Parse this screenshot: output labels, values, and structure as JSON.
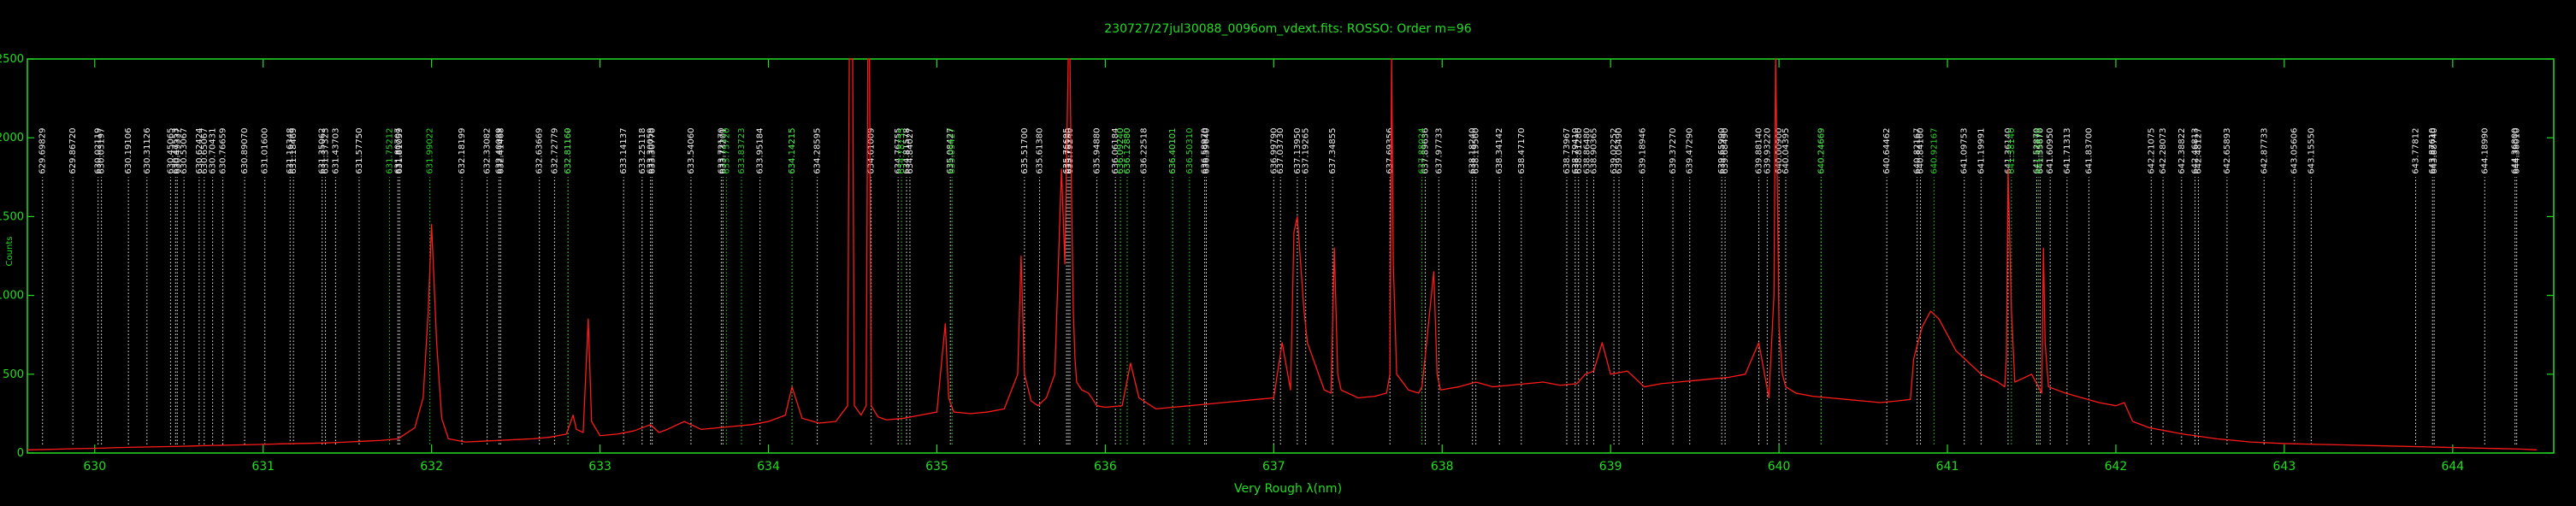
{
  "chart_data": {
    "type": "line",
    "title": "230727/27jul30088_0096om_vdext.fits: ROSSO: Order m=96",
    "xlabel": "Very Rough λ(nm)",
    "ylabel": "Counts",
    "xlim": [
      629.6,
      644.6
    ],
    "ylim": [
      0,
      2500
    ],
    "x_ticks": [
      "630",
      "631",
      "632",
      "633",
      "634",
      "635",
      "636",
      "637",
      "638",
      "639",
      "640",
      "641",
      "642",
      "643",
      "644"
    ],
    "y_ticks": [
      "0",
      "500",
      "1000",
      "1500",
      "2000",
      "2500"
    ],
    "grid": false,
    "colors": {
      "axes": "#22dd22",
      "spectrum": "#ff1a1a",
      "white_markers": "#f2f2f2",
      "green_markers": "#2bd22b"
    },
    "white_markers": [
      {
        "x": 629.69,
        "label": "629.69829"
      },
      {
        "x": 629.87,
        "label": "629.86720"
      },
      {
        "x": 630.02,
        "label": "630.02119"
      },
      {
        "x": 630.04,
        "label": "630.03197"
      },
      {
        "x": 630.2,
        "label": "630.19106"
      },
      {
        "x": 630.31,
        "label": "630.31126"
      },
      {
        "x": 630.45,
        "label": "630.45065"
      },
      {
        "x": 630.48,
        "label": "630.47553"
      },
      {
        "x": 630.49,
        "label": "630.49337"
      },
      {
        "x": 630.53,
        "label": "630.53067"
      },
      {
        "x": 630.62,
        "label": "630.62424"
      },
      {
        "x": 630.65,
        "label": "630.65067"
      },
      {
        "x": 630.7,
        "label": "630.70431"
      },
      {
        "x": 630.76,
        "label": "630.76659"
      },
      {
        "x": 630.89,
        "label": "630.89070"
      },
      {
        "x": 631.01,
        "label": "631.01600"
      },
      {
        "x": 631.16,
        "label": "631.16348"
      },
      {
        "x": 631.18,
        "label": "631.18469"
      },
      {
        "x": 631.35,
        "label": "631.35062"
      },
      {
        "x": 631.37,
        "label": "631.37323"
      },
      {
        "x": 631.43,
        "label": "631.43703"
      },
      {
        "x": 631.57,
        "label": "631.57750"
      },
      {
        "x": 631.8,
        "label": "631.80707"
      },
      {
        "x": 631.81,
        "label": "631.81059"
      },
      {
        "x": 632.18,
        "label": "632.18199"
      },
      {
        "x": 632.33,
        "label": "632.33082"
      },
      {
        "x": 632.4,
        "label": "632.40089"
      },
      {
        "x": 632.41,
        "label": "632.41468"
      },
      {
        "x": 632.64,
        "label": "632.63669"
      },
      {
        "x": 632.73,
        "label": "632.72779"
      },
      {
        "x": 632.81,
        "label": "632.81160"
      },
      {
        "x": 633.14,
        "label": "633.14137"
      },
      {
        "x": 633.25,
        "label": "633.25118"
      },
      {
        "x": 633.3,
        "label": "633.30059"
      },
      {
        "x": 633.31,
        "label": "633.30770"
      },
      {
        "x": 633.54,
        "label": "633.54060"
      },
      {
        "x": 633.72,
        "label": "633.72170"
      },
      {
        "x": 633.73,
        "label": "633.73201"
      },
      {
        "x": 633.95,
        "label": "633.95184"
      },
      {
        "x": 634.14,
        "label": "634.14215"
      },
      {
        "x": 634.29,
        "label": "634.28595"
      },
      {
        "x": 634.61,
        "label": "634.61009"
      },
      {
        "x": 634.77,
        "label": "634.76755"
      },
      {
        "x": 634.82,
        "label": "634.81578"
      },
      {
        "x": 634.84,
        "label": "634.84027"
      },
      {
        "x": 635.08,
        "label": "635.08427"
      },
      {
        "x": 635.52,
        "label": "635.51700"
      },
      {
        "x": 635.61,
        "label": "635.61380"
      },
      {
        "x": 635.77,
        "label": "635.76695"
      },
      {
        "x": 635.78,
        "label": "635.78160"
      },
      {
        "x": 635.79,
        "label": "635.79240"
      },
      {
        "x": 635.95,
        "label": "635.94880"
      },
      {
        "x": 636.06,
        "label": "636.06184"
      },
      {
        "x": 636.09,
        "label": "636.09240"
      },
      {
        "x": 636.13,
        "label": "636.12880"
      },
      {
        "x": 636.23,
        "label": "636.22518"
      },
      {
        "x": 636.4,
        "label": "636.40101"
      },
      {
        "x": 636.59,
        "label": "636.58970"
      },
      {
        "x": 636.6,
        "label": "636.59640"
      },
      {
        "x": 637.0,
        "label": "636.99790"
      },
      {
        "x": 637.04,
        "label": "637.03730"
      },
      {
        "x": 637.14,
        "label": "637.13950"
      },
      {
        "x": 637.19,
        "label": "637.19265"
      },
      {
        "x": 637.35,
        "label": "637.34855"
      },
      {
        "x": 637.69,
        "label": "637.69356"
      },
      {
        "x": 637.9,
        "label": "637.89636"
      },
      {
        "x": 637.98,
        "label": "637.97733"
      },
      {
        "x": 638.18,
        "label": "638.18240"
      },
      {
        "x": 638.2,
        "label": "638.19560"
      },
      {
        "x": 638.34,
        "label": "638.34142"
      },
      {
        "x": 638.47,
        "label": "638.47170"
      },
      {
        "x": 638.74,
        "label": "638.73967"
      },
      {
        "x": 638.79,
        "label": "638.79410"
      },
      {
        "x": 638.81,
        "label": "638.81280"
      },
      {
        "x": 638.86,
        "label": "638.86480"
      },
      {
        "x": 638.9,
        "label": "638.90365"
      },
      {
        "x": 639.02,
        "label": "639.02252"
      },
      {
        "x": 639.05,
        "label": "639.05490"
      },
      {
        "x": 639.19,
        "label": "639.18946"
      },
      {
        "x": 639.37,
        "label": "639.37270"
      },
      {
        "x": 639.47,
        "label": "639.47290"
      },
      {
        "x": 639.66,
        "label": "639.65990"
      },
      {
        "x": 639.68,
        "label": "639.68490"
      },
      {
        "x": 639.88,
        "label": "639.88140"
      },
      {
        "x": 639.93,
        "label": "639.93220"
      },
      {
        "x": 640.0,
        "label": "640.00900"
      },
      {
        "x": 640.04,
        "label": "640.04395"
      },
      {
        "x": 640.25,
        "label": "640.24669"
      },
      {
        "x": 640.64,
        "label": "640.64462"
      },
      {
        "x": 640.82,
        "label": "640.82167"
      },
      {
        "x": 640.84,
        "label": "640.84160"
      },
      {
        "x": 641.1,
        "label": "641.09753"
      },
      {
        "x": 641.2,
        "label": "641.19991"
      },
      {
        "x": 641.36,
        "label": "641.36140"
      },
      {
        "x": 641.53,
        "label": "641.52870"
      },
      {
        "x": 641.55,
        "label": "641.55670"
      },
      {
        "x": 641.61,
        "label": "641.60950"
      },
      {
        "x": 641.71,
        "label": "641.71313"
      },
      {
        "x": 641.84,
        "label": "641.83700"
      },
      {
        "x": 642.21,
        "label": "642.21075"
      },
      {
        "x": 642.28,
        "label": "642.28073"
      },
      {
        "x": 642.39,
        "label": "642.38822"
      },
      {
        "x": 642.47,
        "label": "642.46813"
      },
      {
        "x": 642.49,
        "label": "642.48127"
      },
      {
        "x": 642.66,
        "label": "642.65893"
      },
      {
        "x": 642.88,
        "label": "642.87733"
      },
      {
        "x": 643.06,
        "label": "643.05606"
      },
      {
        "x": 643.16,
        "label": "643.15550"
      },
      {
        "x": 643.78,
        "label": "643.77812"
      },
      {
        "x": 643.88,
        "label": "643.87610"
      },
      {
        "x": 643.89,
        "label": "643.88740"
      },
      {
        "x": 644.19,
        "label": "644.18990"
      },
      {
        "x": 644.37,
        "label": "644.36800"
      },
      {
        "x": 644.38,
        "label": "644.38010"
      }
    ],
    "green_markers": [
      {
        "x": 631.75,
        "label": "631.75212"
      },
      {
        "x": 631.99,
        "label": "631.99022"
      },
      {
        "x": 632.81,
        "label": "632.81169"
      },
      {
        "x": 633.75,
        "label": "633.75720"
      },
      {
        "x": 633.84,
        "label": "633.83723"
      },
      {
        "x": 634.14,
        "label": "634.14215"
      },
      {
        "x": 634.79,
        "label": "634.78755"
      },
      {
        "x": 635.09,
        "label": "635.09427"
      },
      {
        "x": 636.09,
        "label": "636.09240"
      },
      {
        "x": 636.13,
        "label": "636.12880"
      },
      {
        "x": 636.4,
        "label": "636.40101"
      },
      {
        "x": 636.5,
        "label": "636.50310"
      },
      {
        "x": 637.88,
        "label": "637.88024"
      },
      {
        "x": 640.25,
        "label": "640.24669"
      },
      {
        "x": 640.92,
        "label": "640.92167"
      },
      {
        "x": 641.38,
        "label": "641.38140"
      },
      {
        "x": 641.54,
        "label": "641.53870"
      }
    ],
    "series": [
      {
        "x": [
          629.6,
          629.7,
          629.8,
          629.9,
          630.0,
          630.1,
          630.2,
          630.3,
          630.4,
          630.5,
          630.6,
          630.7,
          630.8,
          630.9,
          631.0,
          631.1,
          631.2,
          631.3,
          631.4,
          631.5,
          631.6,
          631.7,
          631.8,
          631.9,
          631.95,
          631.98,
          632.0,
          632.03,
          632.06,
          632.1,
          632.2,
          632.3,
          632.4,
          632.5,
          632.6,
          632.7,
          632.8,
          632.84,
          632.86,
          632.9,
          632.93,
          632.95,
          633.0,
          633.1,
          633.2,
          633.3,
          633.35,
          633.4,
          633.5,
          633.6,
          633.7,
          633.8,
          633.9,
          634.0,
          634.1,
          634.14,
          634.2,
          634.3,
          634.4,
          634.47,
          634.48,
          634.49,
          634.5,
          634.51,
          634.55,
          634.58,
          634.59,
          634.6,
          634.61,
          634.65,
          634.7,
          634.8,
          634.9,
          635.0,
          635.03,
          635.05,
          635.07,
          635.1,
          635.2,
          635.3,
          635.4,
          635.48,
          635.5,
          635.52,
          635.56,
          635.6,
          635.65,
          635.7,
          635.74,
          635.76,
          635.78,
          635.79,
          635.8,
          635.81,
          635.82,
          635.83,
          635.86,
          635.9,
          635.92,
          635.95,
          636.0,
          636.1,
          636.15,
          636.2,
          636.3,
          636.4,
          636.5,
          636.6,
          636.7,
          636.8,
          636.9,
          637.0,
          637.05,
          637.1,
          637.12,
          637.14,
          637.16,
          637.18,
          637.2,
          637.3,
          637.34,
          637.36,
          637.38,
          637.4,
          637.5,
          637.6,
          637.67,
          637.69,
          637.7,
          637.71,
          637.73,
          637.8,
          637.86,
          637.88,
          637.9,
          637.95,
          637.97,
          637.99,
          638.1,
          638.2,
          638.3,
          638.4,
          638.5,
          638.6,
          638.7,
          638.8,
          638.85,
          638.9,
          638.95,
          639.0,
          639.1,
          639.2,
          639.3,
          639.4,
          639.5,
          639.6,
          639.7,
          639.8,
          639.88,
          639.94,
          639.97,
          639.98,
          639.99,
          640.0,
          640.02,
          640.04,
          640.1,
          640.2,
          640.3,
          640.4,
          640.5,
          640.6,
          640.7,
          640.78,
          640.8,
          640.85,
          640.9,
          640.95,
          641.0,
          641.05,
          641.1,
          641.2,
          641.3,
          641.34,
          641.35,
          641.36,
          641.38,
          641.4,
          641.5,
          641.55,
          641.56,
          641.57,
          641.58,
          641.6,
          641.7,
          641.8,
          641.9,
          642.0,
          642.05,
          642.1,
          642.2,
          642.4,
          642.6,
          642.8,
          643.0,
          643.2,
          643.4,
          643.6,
          643.8,
          644.0,
          644.2,
          644.4,
          644.5
        ],
        "y": [
          20,
          22,
          25,
          28,
          30,
          33,
          36,
          38,
          40,
          42,
          45,
          48,
          50,
          52,
          55,
          58,
          60,
          62,
          65,
          70,
          75,
          80,
          90,
          160,
          350,
          900,
          1450,
          700,
          220,
          90,
          70,
          75,
          80,
          85,
          90,
          100,
          120,
          240,
          150,
          130,
          850,
          200,
          110,
          120,
          140,
          180,
          130,
          150,
          200,
          150,
          160,
          170,
          180,
          200,
          240,
          420,
          220,
          190,
          200,
          300,
          2500,
          2500,
          2500,
          300,
          240,
          300,
          2500,
          2500,
          300,
          230,
          210,
          220,
          240,
          260,
          600,
          820,
          350,
          260,
          250,
          260,
          280,
          500,
          1250,
          500,
          330,
          300,
          350,
          500,
          1800,
          1200,
          2500,
          2500,
          1600,
          900,
          600,
          450,
          400,
          380,
          350,
          300,
          290,
          300,
          570,
          350,
          280,
          290,
          300,
          310,
          320,
          330,
          340,
          350,
          700,
          400,
          1400,
          1500,
          1200,
          900,
          700,
          400,
          380,
          1300,
          500,
          400,
          350,
          360,
          380,
          500,
          2500,
          1200,
          500,
          400,
          380,
          420,
          620,
          1150,
          500,
          400,
          420,
          450,
          420,
          430,
          440,
          450,
          430,
          440,
          500,
          520,
          700,
          500,
          520,
          420,
          440,
          450,
          460,
          470,
          480,
          500,
          700,
          350,
          1000,
          2500,
          1700,
          800,
          500,
          420,
          380,
          360,
          350,
          340,
          330,
          320,
          330,
          340,
          600,
          800,
          900,
          850,
          750,
          650,
          600,
          500,
          450,
          420,
          600,
          1800,
          900,
          450,
          500,
          400,
          380,
          1300,
          700,
          420,
          380,
          350,
          320,
          300,
          320,
          200,
          160,
          120,
          90,
          70,
          60,
          55,
          50,
          45,
          40,
          35,
          30,
          25,
          20
        ]
      }
    ]
  }
}
